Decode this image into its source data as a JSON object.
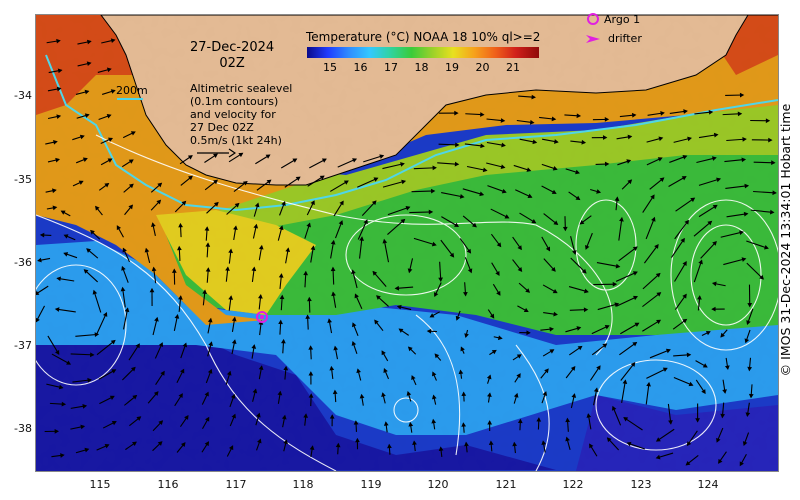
{
  "map": {
    "date_line1": "27-Dec-2024",
    "date_line2": "02Z",
    "colorbar_title": "Temperature (°C) NOAA 18 10% ql>=2",
    "colorbar_ticks": [
      "15",
      "16",
      "17",
      "18",
      "19",
      "20",
      "21"
    ],
    "legend": {
      "argo": "Argo 1",
      "drifter": "drifter"
    },
    "contour_200m_label": "200m",
    "velocity_desc": "Altimetric sealevel\n(0.1m contours)\nand velocity for\n27 Dec 02Z\n0.5m/s (1kt 24h)",
    "lat_ticks": [
      "-34",
      "-35",
      "-36",
      "-37",
      "-38"
    ],
    "lon_ticks": [
      "115",
      "116",
      "117",
      "118",
      "119",
      "120",
      "121",
      "122",
      "123",
      "124"
    ],
    "credit": "© IMOS 31-Dec-2024 13:34:01 Hobart time",
    "colors": {
      "land": "#f6c9a0",
      "sst_cold": "#1a2fd0",
      "sst_mid": "#3bc83b",
      "sst_warm": "#f29a1a",
      "drifter": "#e020e0",
      "argo": "#e020e0",
      "contour_200m": "#4fd6e8"
    }
  }
}
